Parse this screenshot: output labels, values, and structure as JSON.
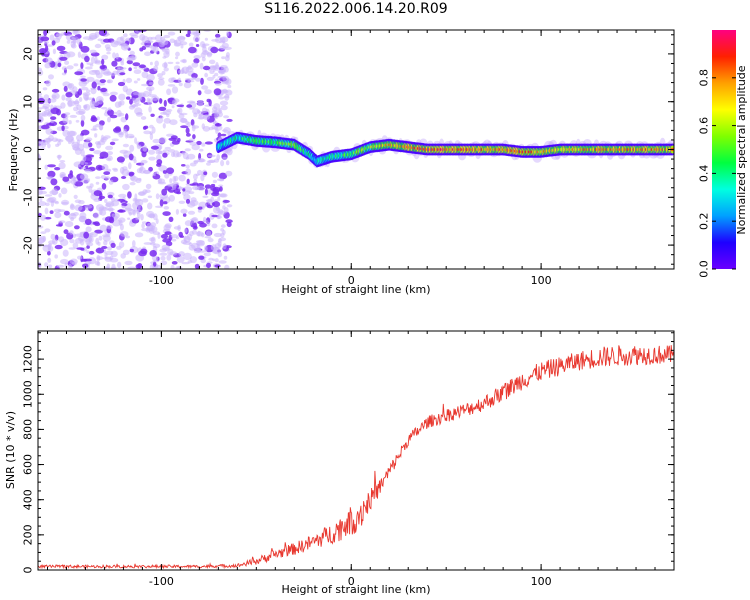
{
  "title": "S116.2022.006.14.20.R09",
  "colors": {
    "snr_line": "#e8382f",
    "noise": "#7a2df0",
    "noise_light": "#cbb4fb",
    "colorbar": [
      "#6a00ff",
      "#1e00ff",
      "#00a0ff",
      "#00ffe0",
      "#00ff40",
      "#80ff00",
      "#ffff00",
      "#ffa000",
      "#ff2000",
      "#ff0080"
    ]
  },
  "chart_data": [
    {
      "type": "heatmap",
      "title": "S116.2022.006.14.20.R09",
      "xlabel": "Height of straight line (km)",
      "ylabel": "Frequency (Hz)",
      "xlim": [
        -165,
        170
      ],
      "ylim": [
        -25,
        25
      ],
      "x_ticks": [
        -100,
        0,
        100
      ],
      "y_ticks": [
        20,
        10,
        0,
        -10,
        -20
      ],
      "x_tick_labels": [
        "-100",
        "0",
        "100"
      ],
      "y_tick_labels": [
        "20",
        "10",
        "0",
        "-10",
        "-20"
      ],
      "colorbar": {
        "label": "Normalized spectral amplitude",
        "range": [
          0,
          1
        ],
        "ticks": [
          0.0,
          0.2,
          0.4,
          0.6,
          0.8
        ],
        "tick_labels": [
          "0.0",
          "0.2",
          "0.4",
          "0.6",
          "0.8"
        ]
      },
      "noise_region_x": [
        -165,
        -70
      ],
      "signal_track": {
        "x": [
          -70,
          -60,
          -50,
          -40,
          -30,
          -22,
          -18,
          -10,
          0,
          10,
          20,
          40,
          60,
          80,
          90,
          100,
          110,
          130,
          150,
          170
        ],
        "freq": [
          0.5,
          2.5,
          1.8,
          1.5,
          1.0,
          -1.0,
          -2.5,
          -1.5,
          -1.0,
          0.5,
          1.0,
          0.0,
          0.0,
          0.0,
          -0.5,
          -0.5,
          0.0,
          0.0,
          0.0,
          0.0
        ],
        "amplitude": [
          0.3,
          0.4,
          0.45,
          0.5,
          0.55,
          0.35,
          0.3,
          0.4,
          0.5,
          0.6,
          0.75,
          0.9,
          0.85,
          0.8,
          0.85,
          0.75,
          0.7,
          0.8,
          0.8,
          0.8
        ]
      }
    },
    {
      "type": "line",
      "xlabel": "Height of straight line (km)",
      "ylabel": "SNR (10 * v/v)",
      "xlim": [
        -165,
        170
      ],
      "ylim": [
        0,
        1360
      ],
      "x_ticks": [
        -100,
        0,
        100
      ],
      "y_ticks": [
        0,
        200,
        400,
        600,
        800,
        1000,
        1200
      ],
      "x_tick_labels": [
        "-100",
        "0",
        "100"
      ],
      "y_tick_labels": [
        "0",
        "200",
        "400",
        "600",
        "800",
        "1000",
        "1200"
      ],
      "series": [
        {
          "x": [
            -165,
            -130,
            -100,
            -80,
            -60,
            -50,
            -40,
            -30,
            -20,
            -10,
            0,
            5,
            10,
            15,
            20,
            25,
            30,
            40,
            50,
            60,
            70,
            80,
            90,
            100,
            110,
            120,
            130,
            140,
            150,
            160,
            170
          ],
          "y": [
            20,
            20,
            20,
            20,
            25,
            50,
            90,
            120,
            160,
            210,
            280,
            330,
            400,
            470,
            560,
            650,
            740,
            840,
            880,
            910,
            950,
            1010,
            1080,
            1130,
            1160,
            1190,
            1210,
            1220,
            1225,
            1225,
            1225
          ],
          "noise_amp": [
            8,
            8,
            8,
            8,
            10,
            20,
            30,
            35,
            45,
            60,
            90,
            100,
            60,
            50,
            40,
            35,
            35,
            35,
            40,
            40,
            45,
            50,
            55,
            55,
            55,
            55,
            60,
            60,
            60,
            55,
            55
          ]
        }
      ]
    }
  ]
}
